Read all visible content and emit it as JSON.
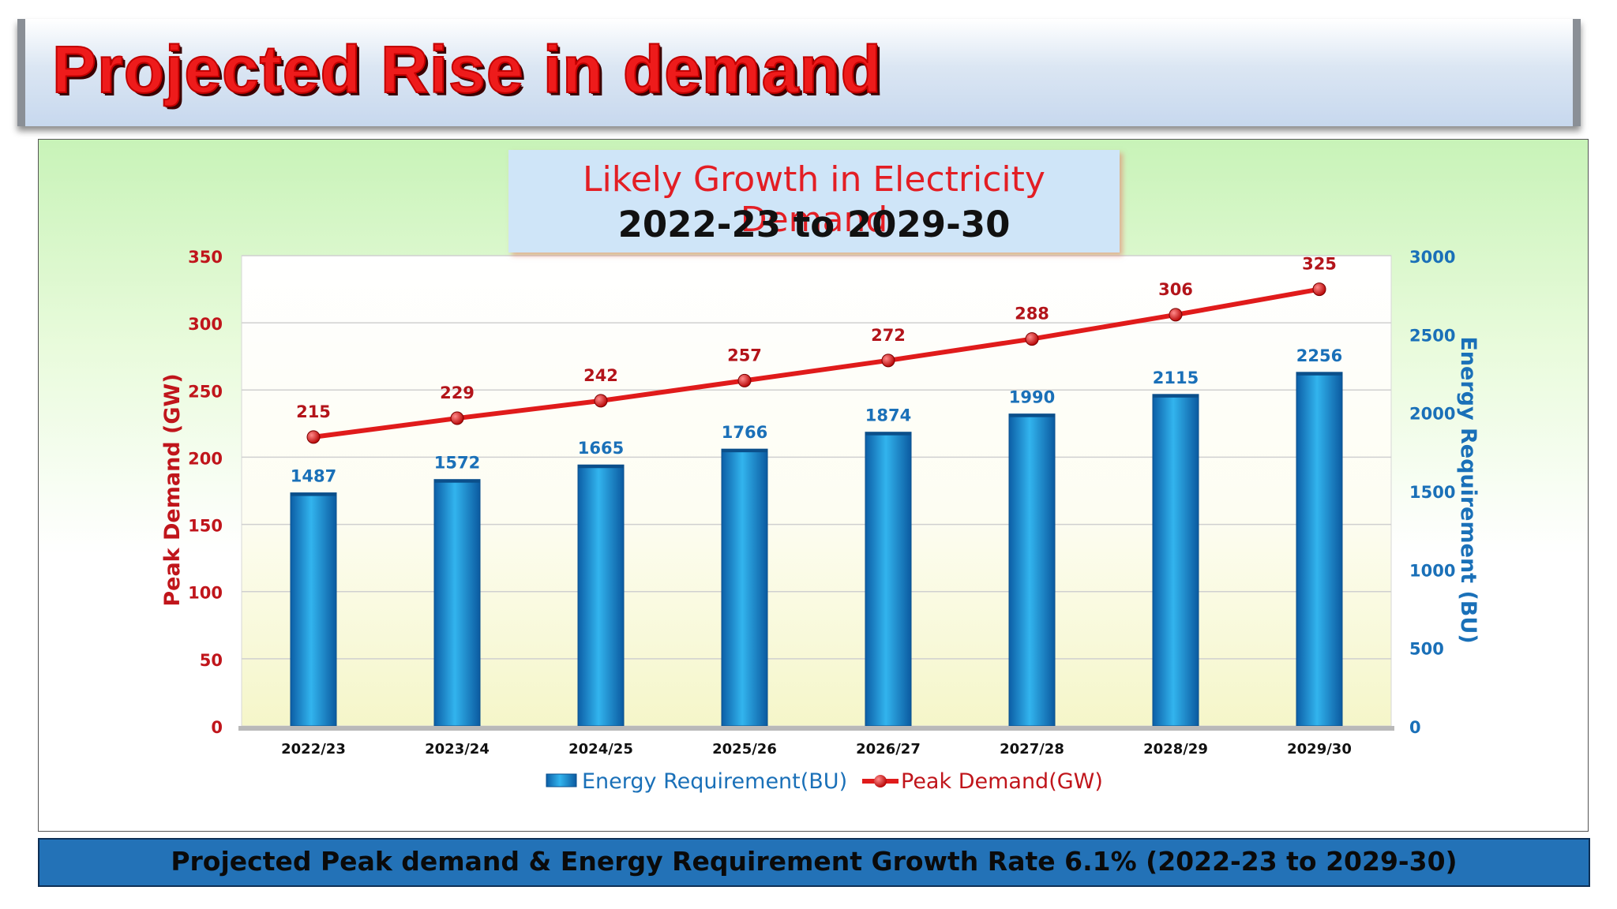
{
  "header": {
    "title": "Projected Rise in demand"
  },
  "chart_title": {
    "line1": "Likely Growth in Electricity Demand",
    "line2": "2022-23 to 2029-30"
  },
  "footer": {
    "text": "Projected Peak demand & Energy Requirement Growth Rate 6.1% (2022-23 to 2029-30)"
  },
  "chart_data": {
    "type": "bar+line",
    "categories": [
      "2022/23",
      "2023/24",
      "2024/25",
      "2025/26",
      "2026/27",
      "2027/28",
      "2028/29",
      "2029/30"
    ],
    "series": [
      {
        "name": "Energy Requirement(BU)",
        "type": "bar",
        "axis": "right",
        "color": "#1a8fd6",
        "values": [
          1487,
          1572,
          1665,
          1766,
          1874,
          1990,
          2115,
          2256
        ]
      },
      {
        "name": "Peak Demand(GW)",
        "type": "line",
        "axis": "left",
        "color": "#e01b1b",
        "values": [
          215,
          229,
          242,
          257,
          272,
          288,
          306,
          325
        ]
      }
    ],
    "ylabel_left": "Peak Demand  (GW)",
    "ylabel_right": "Energy Requirement (BU)",
    "ylim_left": [
      0,
      350
    ],
    "yticks_left": [
      0,
      50,
      100,
      150,
      200,
      250,
      300,
      350
    ],
    "ylim_right": [
      0,
      3000
    ],
    "yticks_right": [
      0,
      500,
      1000,
      1500,
      2000,
      2500,
      3000
    ],
    "grid": true,
    "legend": "bottom-center"
  }
}
